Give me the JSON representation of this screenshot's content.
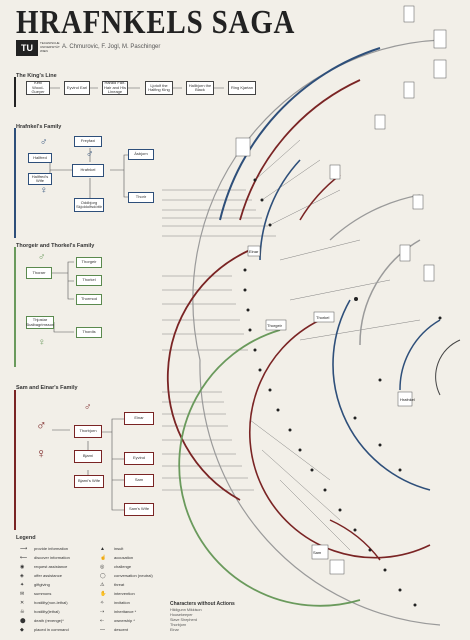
{
  "header": {
    "title": "HRAFNKELS SAGA",
    "logo": "TU",
    "logo_sub": "TECHNISCHE UNIVERSITÄT WIEN",
    "authors": "A. Chmurovic, F. Jogl, M. Paschinger"
  },
  "sections": {
    "kings_line": "The King's Line",
    "hrafnkel_family": "Hrafnkel's Family",
    "thorgeir_family": "Thorgeir and Thorkel's Family",
    "sam_family": "Sam and Einar's Family"
  },
  "kings_line": [
    "Ketil Wood-Gueyer",
    "Eyvind Earl",
    "Harald Fair-Hair and His Lineage",
    "Ljotolf the Halfing King",
    "Hallbjorn the Black",
    "Ring Kjartan"
  ],
  "hrafnkel_family": {
    "parents": [
      "Hallfred",
      "Hallfred's Wife"
    ],
    "center": "Hrafnkel",
    "top": "Freyfaxi",
    "right": [
      "Ásbjorn",
      "Thorir"
    ],
    "bottom": "Oddbjorg Skjoldolfsdóttir"
  },
  "thorgeir_family": {
    "parent": "Thorarr",
    "children": [
      "Thorgeir",
      "Thorkel",
      "Thormod"
    ],
    "mother": "Thjostar Skalbagrimsson",
    "bottom": "Thordis"
  },
  "sam_family": {
    "center_top": "Thorbjorn",
    "center_mid": "Bjarni",
    "center_low": "Bjarni's Wife",
    "right": [
      "Einar",
      "Eyvind",
      "Sam",
      "Sam's Wife"
    ]
  },
  "arcs": {
    "labels": [
      "Einar",
      "Freyfaxi",
      "Thorbjorn",
      "Hallbjorn Bjarni",
      "Thorkel",
      "Thorgeir",
      "Thjostar",
      "Eyvind",
      "Hrafnkel",
      "Ásbjorn",
      "Sam"
    ]
  },
  "legend": {
    "title": "Legend",
    "left": [
      "provide information",
      "discover information",
      "request assistance",
      "offer assistance",
      "giftgiving",
      "summons",
      "hostility(non-lethal)",
      "hostility(lethal)",
      "death (revenge)*",
      "placed in command"
    ],
    "right": [
      "insult",
      "accusation",
      "challenge",
      "conversation (neutral)",
      "threat",
      "intervention",
      "invitation",
      "inheritance *",
      "ownership *",
      "descent"
    ]
  },
  "non_actors": {
    "title": "Characters without Actions",
    "items": [
      "Hildigunn Mikkison",
      "Housekeeper",
      "Slave Shepherd",
      "Thorbjorn",
      "Einar"
    ]
  },
  "colors": {
    "blue": "#2e4f7a",
    "green": "#6a9a5c",
    "red": "#7a2424",
    "grey": "#9a9a9a"
  }
}
